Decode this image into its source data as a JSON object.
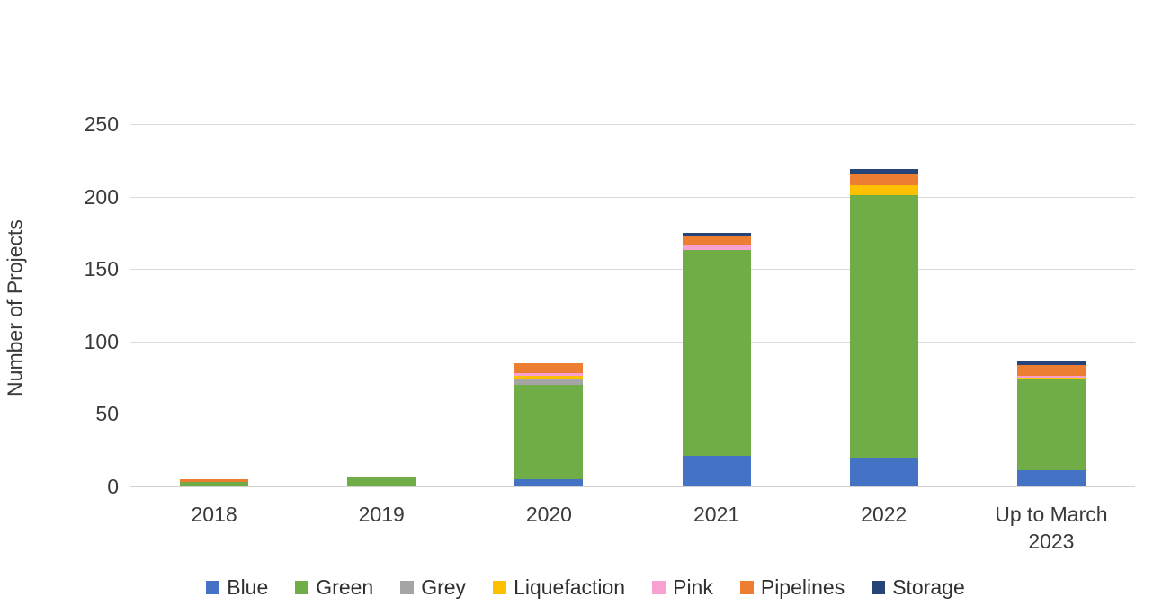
{
  "chart_data": {
    "type": "bar",
    "stacked": true,
    "title": "",
    "xlabel": "",
    "ylabel": "Number of Projects",
    "ylim": [
      0,
      250
    ],
    "yticks": [
      0,
      50,
      100,
      150,
      200,
      250
    ],
    "grid": true,
    "legend_position": "bottom",
    "categories": [
      "2018",
      "2019",
      "2020",
      "2021",
      "2022",
      "Up to March 2023"
    ],
    "series": [
      {
        "name": "Blue",
        "color": "#4472C4",
        "values": [
          0,
          0,
          5,
          21,
          20,
          11
        ]
      },
      {
        "name": "Green",
        "color": "#70AD47",
        "values": [
          3,
          7,
          65,
          142,
          181,
          63
        ]
      },
      {
        "name": "Grey",
        "color": "#A5A5A5",
        "values": [
          0,
          0,
          4,
          0,
          0,
          0
        ]
      },
      {
        "name": "Liquefaction",
        "color": "#FFC000",
        "values": [
          0,
          0,
          2,
          0,
          7,
          1
        ]
      },
      {
        "name": "Pink",
        "color": "#F8A0D0",
        "values": [
          0,
          0,
          2,
          3,
          0,
          1
        ]
      },
      {
        "name": "Pipelines",
        "color": "#ED7D31",
        "values": [
          2,
          0,
          7,
          7,
          7,
          8
        ]
      },
      {
        "name": "Storage",
        "color": "#264478",
        "values": [
          0,
          0,
          0,
          2,
          4,
          2
        ]
      }
    ],
    "totals": [
      5,
      7,
      85,
      175,
      219,
      86
    ],
    "background_color": "#FFFFFF",
    "gridline_color": "#DBDBDB",
    "text_color": "#3A3A3A"
  }
}
